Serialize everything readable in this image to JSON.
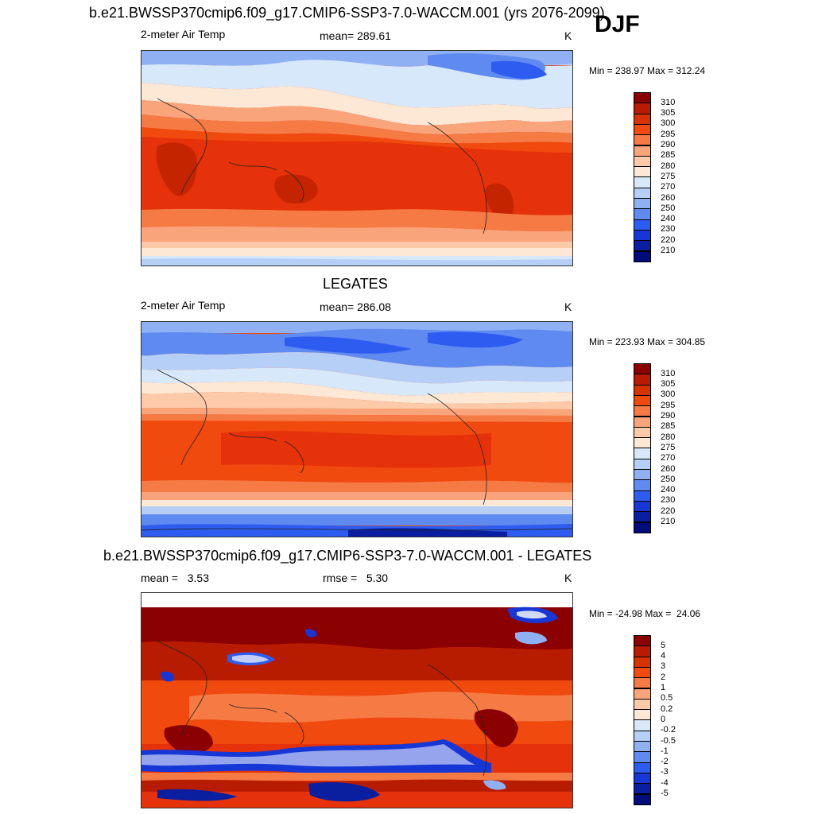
{
  "season": "DJF",
  "panels": [
    {
      "title": "b.e21.BWSSP370cmip6.f09_g17.CMIP6-SSP3-7.0-WACCM.001 (yrs 2076-2099)",
      "left": "2-meter Air Temp",
      "center": "mean= 289.61",
      "right": "K",
      "minmax": "Min = 238.97 Max = 312.24"
    },
    {
      "title": "LEGATES",
      "left": "2-meter Air Temp",
      "center": "mean= 286.08",
      "right": "K",
      "minmax": "Min = 223.93 Max = 304.85"
    },
    {
      "title": "b.e21.BWSSP370cmip6.f09_g17.CMIP6-SSP3-7.0-WACCM.001 - LEGATES",
      "left": "mean =   3.53",
      "center": "rmse =   5.30",
      "right": "K",
      "minmax": "Min = -24.98 Max =  24.06"
    }
  ],
  "colorbars": {
    "temp": {
      "labels": [
        "310",
        "305",
        "300",
        "295",
        "290",
        "285",
        "280",
        "275",
        "270",
        "260",
        "250",
        "240",
        "230",
        "220",
        "210"
      ],
      "colors": [
        "#8b0000",
        "#b81c00",
        "#d63300",
        "#f04a0e",
        "#f57a44",
        "#f9a47a",
        "#fcc9a9",
        "#fde8d6",
        "#d8e8fb",
        "#b5cff7",
        "#8fb1f3",
        "#5f8af0",
        "#2f5cf0",
        "#1637d6",
        "#0a1fa0",
        "#000c7a"
      ]
    },
    "diff": {
      "labels": [
        "5",
        "4",
        "3",
        "2",
        "1",
        "0.5",
        "0.2",
        "0",
        "-0.2",
        "-0.5",
        "-1",
        "-2",
        "-3",
        "-4",
        "-5"
      ],
      "colors": [
        "#8b0000",
        "#b81c00",
        "#d63300",
        "#f04a0e",
        "#f57a44",
        "#f9a47a",
        "#fcc9a9",
        "#fde8d6",
        "#d8e8fb",
        "#b5cff7",
        "#8fb1f3",
        "#5f8af0",
        "#2f5cf0",
        "#1637d6",
        "#0a1fa0",
        "#000c7a"
      ]
    }
  },
  "chart_data": [
    {
      "type": "heatmap",
      "title": "b.e21.BWSSP370cmip6.f09_g17.CMIP6-SSP3-7.0-WACCM.001 (yrs 2076-2099)",
      "variable": "2-meter Air Temp",
      "units": "K",
      "mean": 289.61,
      "min": 238.97,
      "max": 312.24,
      "levels": [
        210,
        220,
        230,
        240,
        250,
        260,
        270,
        275,
        280,
        285,
        290,
        295,
        300,
        305,
        310
      ]
    },
    {
      "type": "heatmap",
      "title": "LEGATES",
      "variable": "2-meter Air Temp",
      "units": "K",
      "mean": 286.08,
      "min": 223.93,
      "max": 304.85,
      "levels": [
        210,
        220,
        230,
        240,
        250,
        260,
        270,
        275,
        280,
        285,
        290,
        295,
        300,
        305,
        310
      ]
    },
    {
      "type": "heatmap",
      "title": "b.e21.BWSSP370cmip6.f09_g17.CMIP6-SSP3-7.0-WACCM.001 - LEGATES",
      "units": "K",
      "mean": 3.53,
      "rmse": 5.3,
      "min": -24.98,
      "max": 24.06,
      "levels": [
        -5,
        -4,
        -3,
        -2,
        -1,
        -0.5,
        -0.2,
        0,
        0.2,
        0.5,
        1,
        2,
        3,
        4,
        5
      ]
    }
  ]
}
